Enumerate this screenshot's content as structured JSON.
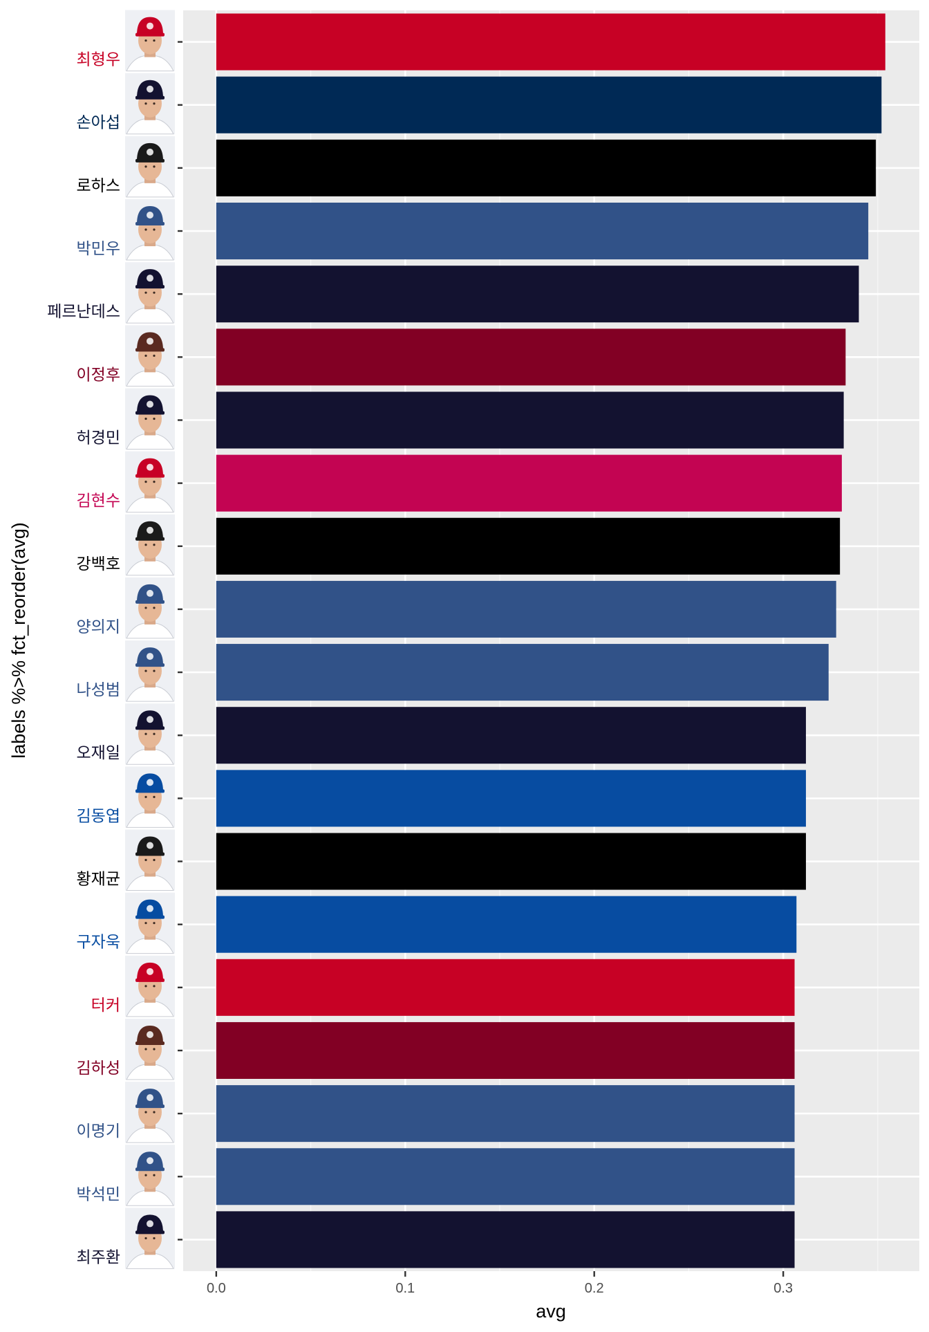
{
  "chart_data": {
    "type": "bar",
    "orientation": "horizontal",
    "title": "",
    "xlabel": "avg",
    "ylabel": "labels %>% fct_reorder(avg)",
    "xlim": [
      -0.0175,
      0.372
    ],
    "x_ticks": [
      0.0,
      0.1,
      0.2,
      0.3
    ],
    "x_tick_labels": [
      "0.0",
      "0.1",
      "0.2",
      "0.3"
    ],
    "grid": true,
    "panel_background": "#ebebeb",
    "categories": [
      "최형우",
      "손아섭",
      "로하스",
      "박민우",
      "페르난데스",
      "이정후",
      "허경민",
      "김현수",
      "강백호",
      "양의지",
      "나성범",
      "오재일",
      "김동엽",
      "황재균",
      "구자욱",
      "터커",
      "김하성",
      "이명기",
      "박석민",
      "최주환"
    ],
    "values": [
      0.354,
      0.352,
      0.349,
      0.345,
      0.34,
      0.333,
      0.332,
      0.331,
      0.33,
      0.328,
      0.324,
      0.312,
      0.312,
      0.312,
      0.307,
      0.306,
      0.306,
      0.306,
      0.306,
      0.306
    ],
    "colors": [
      "#c70125",
      "#002955",
      "#000000",
      "#315288",
      "#131230",
      "#820024",
      "#131230",
      "#c30452",
      "#000000",
      "#315288",
      "#315288",
      "#131230",
      "#074ca1",
      "#000000",
      "#074ca1",
      "#c70125",
      "#820024",
      "#315288",
      "#315288",
      "#131230"
    ],
    "label_colors": [
      "#c70125",
      "#002955",
      "#000000",
      "#315288",
      "#131230",
      "#820024",
      "#131230",
      "#c30452",
      "#000000",
      "#315288",
      "#315288",
      "#131230",
      "#074ca1",
      "#000000",
      "#074ca1",
      "#c70125",
      "#820024",
      "#315288",
      "#315288",
      "#131230"
    ],
    "cap_colors": [
      "#c70125",
      "#131230",
      "#1a1a1a",
      "#315288",
      "#131230",
      "#5a2a20",
      "#131230",
      "#c70125",
      "#1a1a1a",
      "#315288",
      "#315288",
      "#131230",
      "#074ca1",
      "#1a1a1a",
      "#074ca1",
      "#c70125",
      "#5a2a20",
      "#315288",
      "#315288",
      "#131230"
    ]
  }
}
